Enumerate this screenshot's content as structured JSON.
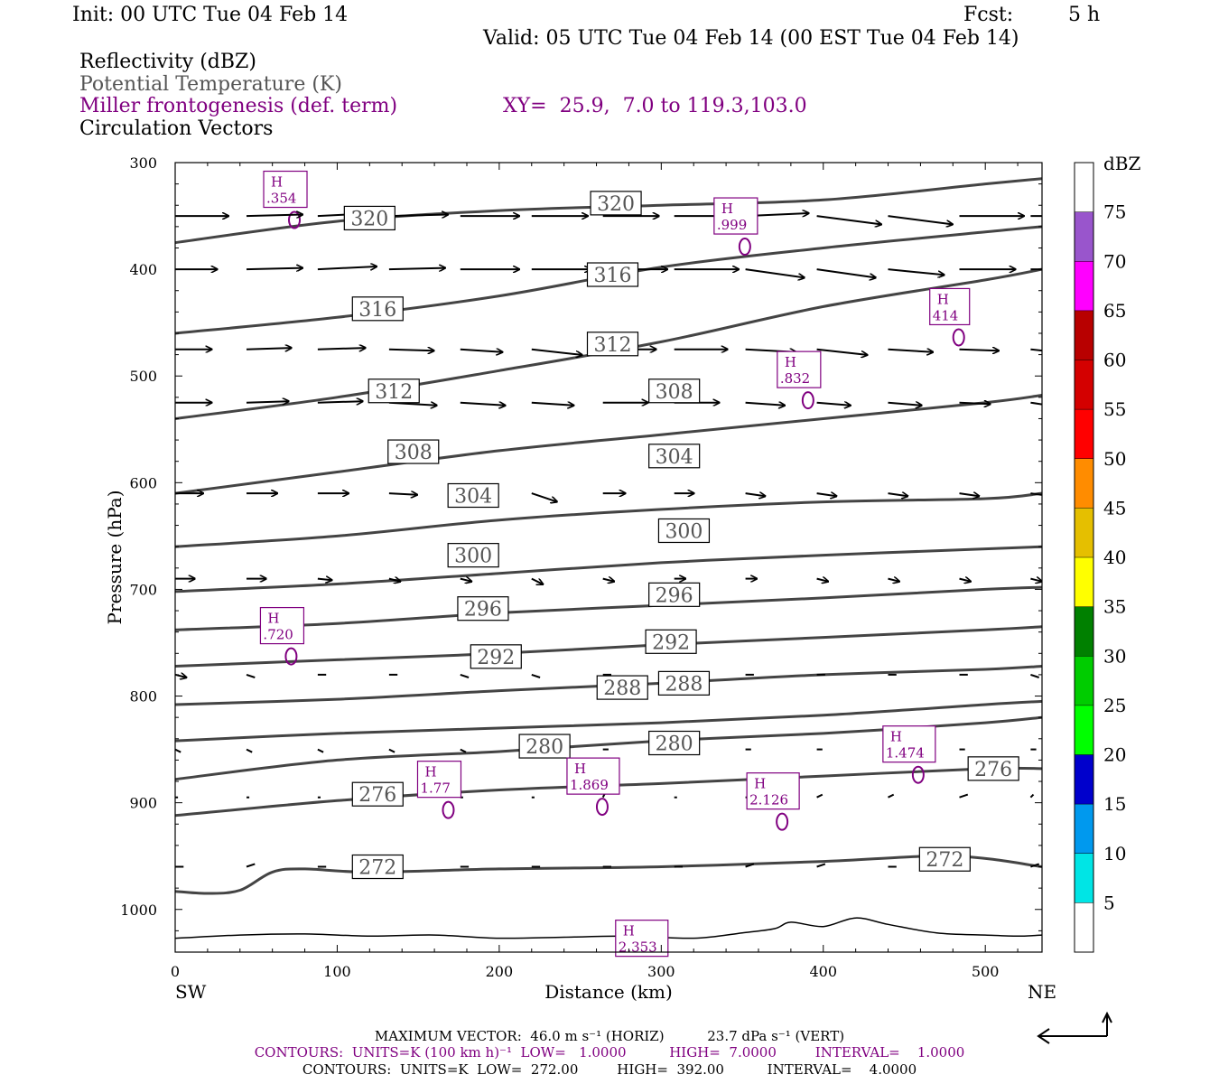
{
  "header": {
    "init": "Init: 00 UTC Tue 04 Feb 14",
    "fcst_label": "Fcst:",
    "fcst_value": "5 h",
    "valid": "Valid: 05 UTC Tue 04 Feb 14 (00 EST Tue 04 Feb 14)"
  },
  "legend": {
    "reflectivity": "Reflectivity (dBZ)",
    "theta": "Potential Temperature (K)",
    "frontogenesis": "Miller frontogenesis (def. term)",
    "xy": "XY=  25.9,  7.0 to 119.3,103.0",
    "circulation": "Circulation Vectors"
  },
  "colors": {
    "frontogenesis": "#800080",
    "theta": "#444444",
    "text": "#000000",
    "theta_label_text": "#555555"
  },
  "axes": {
    "ylabel": "Pressure (hPa)",
    "xlabel": "Distance (km)",
    "x_left": "SW",
    "x_right": "NE",
    "xticks": [
      0,
      100,
      200,
      300,
      400,
      500
    ],
    "yticks": [
      300,
      400,
      500,
      600,
      700,
      800,
      900,
      1000
    ]
  },
  "colorbar": {
    "title": "dBZ",
    "levels": [
      5,
      10,
      15,
      20,
      25,
      30,
      35,
      40,
      45,
      50,
      55,
      60,
      65,
      70,
      75
    ],
    "colors": [
      "#ffffff",
      "#00e5e5",
      "#0099ee",
      "#0000cc",
      "#00ff00",
      "#00cc00",
      "#008000",
      "#ffff00",
      "#e5bf00",
      "#ff8c00",
      "#ff0000",
      "#d40000",
      "#b80000",
      "#ff00ff",
      "#9955cc",
      "#ffffff"
    ]
  },
  "footer": {
    "max_vector": "MAXIMUM VECTOR:  46.0 m s⁻¹ (HORIZ)          23.7 dPa s⁻¹ (VERT)",
    "contours1": "CONTOURS:  UNITS=K (100 km h)⁻¹  LOW=   1.0000          HIGH=  7.0000         INTERVAL=    1.0000",
    "contours2": "CONTOURS:  UNITS=K  LOW=  272.00         HIGH=  392.00          INTERVAL=    4.0000"
  },
  "chart_data": {
    "type": "cross-section",
    "xlim": [
      0,
      535
    ],
    "ylim": [
      300,
      1040
    ],
    "y_scale": "linear, inverted (pressure decreasing upward)",
    "theta_contours": [
      {
        "value": 272,
        "x": [
          0,
          20,
          40,
          60,
          80,
          120,
          200,
          300,
          400,
          480,
          535
        ],
        "p": [
          983,
          985,
          982,
          965,
          962,
          965,
          962,
          960,
          955,
          950,
          960
        ]
      },
      {
        "value": 276,
        "x": [
          0,
          100,
          200,
          300,
          400,
          500,
          535
        ],
        "p": [
          912,
          898,
          888,
          882,
          875,
          868,
          868
        ]
      },
      {
        "value": 280,
        "x": [
          0,
          100,
          200,
          300,
          400,
          500,
          535
        ],
        "p": [
          878,
          860,
          852,
          842,
          835,
          825,
          820
        ]
      },
      {
        "value": 284,
        "x": [
          0,
          100,
          200,
          300,
          400,
          500,
          535
        ],
        "p": [
          842,
          835,
          830,
          825,
          818,
          808,
          805
        ]
      },
      {
        "value": 288,
        "x": [
          0,
          100,
          200,
          300,
          400,
          500,
          535
        ],
        "p": [
          808,
          803,
          795,
          788,
          780,
          775,
          772
        ]
      },
      {
        "value": 292,
        "x": [
          0,
          100,
          200,
          300,
          400,
          500,
          535
        ],
        "p": [
          772,
          766,
          760,
          752,
          745,
          738,
          735
        ]
      },
      {
        "value": 296,
        "x": [
          0,
          100,
          200,
          300,
          400,
          500,
          535
        ],
        "p": [
          738,
          732,
          722,
          715,
          708,
          700,
          698
        ]
      },
      {
        "value": 300,
        "x": [
          0,
          100,
          200,
          300,
          400,
          500,
          535
        ],
        "p": [
          702,
          695,
          685,
          675,
          668,
          662,
          660
        ]
      },
      {
        "value": 304,
        "x": [
          0,
          100,
          200,
          300,
          400,
          500,
          535
        ],
        "p": [
          660,
          650,
          635,
          625,
          618,
          615,
          610
        ]
      },
      {
        "value": 308,
        "x": [
          0,
          100,
          200,
          300,
          400,
          500,
          535
        ],
        "p": [
          610,
          590,
          570,
          555,
          540,
          525,
          518
        ]
      },
      {
        "value": 312,
        "x": [
          0,
          100,
          200,
          300,
          400,
          500,
          535
        ],
        "p": [
          540,
          520,
          495,
          468,
          435,
          410,
          400
        ]
      },
      {
        "value": 316,
        "x": [
          0,
          100,
          200,
          300,
          400,
          500,
          535
        ],
        "p": [
          460,
          445,
          425,
          398,
          380,
          365,
          360
        ]
      },
      {
        "value": 320,
        "x": [
          0,
          100,
          200,
          300,
          400,
          500,
          535
        ],
        "p": [
          375,
          355,
          345,
          340,
          335,
          320,
          315
        ]
      }
    ],
    "theta_labels": [
      {
        "text": "320",
        "x": 120,
        "p": 352
      },
      {
        "text": "320",
        "x": 272,
        "p": 338
      },
      {
        "text": "316",
        "x": 125,
        "p": 437
      },
      {
        "text": "316",
        "x": 270,
        "p": 405
      },
      {
        "text": "312",
        "x": 135,
        "p": 514
      },
      {
        "text": "312",
        "x": 270,
        "p": 470
      },
      {
        "text": "308",
        "x": 147,
        "p": 571
      },
      {
        "text": "308",
        "x": 308,
        "p": 514
      },
      {
        "text": "304",
        "x": 184,
        "p": 612
      },
      {
        "text": "304",
        "x": 308,
        "p": 575
      },
      {
        "text": "300",
        "x": 184,
        "p": 668
      },
      {
        "text": "300",
        "x": 314,
        "p": 645
      },
      {
        "text": "296",
        "x": 190,
        "p": 718
      },
      {
        "text": "296",
        "x": 308,
        "p": 705
      },
      {
        "text": "292",
        "x": 198,
        "p": 763
      },
      {
        "text": "292",
        "x": 306,
        "p": 749
      },
      {
        "text": "288",
        "x": 276,
        "p": 792
      },
      {
        "text": "288",
        "x": 314,
        "p": 788
      },
      {
        "text": "280",
        "x": 228,
        "p": 847
      },
      {
        "text": "280",
        "x": 308,
        "p": 844
      },
      {
        "text": "276",
        "x": 125,
        "p": 892
      },
      {
        "text": "276",
        "x": 505,
        "p": 868
      },
      {
        "text": "272",
        "x": 125,
        "p": 960
      },
      {
        "text": "272",
        "x": 475,
        "p": 953
      }
    ],
    "frontogenesis_maxima": [
      {
        "label": "H",
        "value": ".354",
        "x": 68,
        "p": 325
      },
      {
        "label": "H",
        "value": ".999",
        "x": 346,
        "p": 350
      },
      {
        "label": "H",
        "value": "414",
        "x": 478,
        "p": 435
      },
      {
        "label": "H",
        "value": ".832",
        "x": 385,
        "p": 494
      },
      {
        "label": "H",
        "value": ".720",
        "x": 66,
        "p": 734
      },
      {
        "label": "H",
        "value": "1.474",
        "x": 453,
        "p": 845
      },
      {
        "label": "H",
        "value": "1.77",
        "x": 163,
        "p": 878
      },
      {
        "label": "H",
        "value": "1.869",
        "x": 258,
        "p": 875
      },
      {
        "label": "H",
        "value": "2.126",
        "x": 369,
        "p": 889
      },
      {
        "label": "H",
        "value": "2.353",
        "x": 288,
        "p": 1027
      }
    ],
    "circulation_vectors": [
      {
        "level": 350,
        "x": [
          0,
          44,
          88,
          132,
          176,
          220,
          264,
          308,
          352,
          396,
          440,
          484,
          528
        ],
        "u": [
          38,
          40,
          42,
          42,
          42,
          40,
          40,
          44,
          45,
          46,
          46,
          46,
          45
        ],
        "w": [
          0,
          1,
          2,
          1,
          0,
          0,
          0,
          0,
          2,
          -6,
          -6,
          0,
          0
        ]
      },
      {
        "level": 400,
        "x": [
          0,
          44,
          88,
          132,
          176,
          220,
          264,
          308,
          352,
          396,
          440,
          484,
          528
        ],
        "u": [
          30,
          40,
          42,
          40,
          42,
          42,
          46,
          46,
          42,
          42,
          40,
          40,
          38
        ],
        "w": [
          0,
          1,
          2,
          1,
          0,
          0,
          0,
          0,
          -6,
          -6,
          -4,
          0,
          0
        ]
      },
      {
        "level": 475,
        "x": [
          0,
          44,
          88,
          132,
          176,
          220,
          264,
          308,
          352,
          396,
          440,
          484,
          528
        ],
        "u": [
          26,
          32,
          34,
          32,
          30,
          36,
          38,
          38,
          36,
          36,
          32,
          28,
          26
        ],
        "w": [
          0,
          1,
          1,
          -1,
          -2,
          -4,
          0,
          0,
          -2,
          -4,
          -2,
          -1,
          -3
        ]
      },
      {
        "level": 525,
        "x": [
          0,
          44,
          88,
          132,
          176,
          220,
          264,
          308,
          352,
          396,
          440,
          484,
          528
        ],
        "u": [
          26,
          30,
          32,
          34,
          32,
          30,
          32,
          32,
          28,
          24,
          24,
          22,
          20
        ],
        "w": [
          0,
          1,
          1,
          -2,
          -2,
          -2,
          0,
          0,
          -2,
          -2,
          -2,
          -1,
          -3
        ]
      },
      {
        "level": 610,
        "x": [
          0,
          44,
          88,
          132,
          176,
          220,
          264,
          308,
          352,
          396,
          440,
          484,
          528
        ],
        "u": [
          20,
          22,
          22,
          20,
          18,
          18,
          16,
          14,
          14,
          14,
          14,
          14,
          14
        ],
        "w": [
          0,
          0,
          0,
          -1,
          -1,
          -6,
          0,
          0,
          -2,
          -2,
          -2,
          -2,
          -2
        ]
      },
      {
        "level": 690,
        "x": [
          0,
          44,
          88,
          132,
          176,
          220,
          264,
          308,
          352,
          396,
          440,
          484,
          528
        ],
        "u": [
          14,
          14,
          10,
          8,
          8,
          8,
          8,
          8,
          8,
          8,
          8,
          8,
          8
        ],
        "w": [
          0,
          0,
          -1,
          -2,
          -2,
          -4,
          -2,
          0,
          0,
          -2,
          -2,
          -2,
          -2
        ]
      },
      {
        "level": 780,
        "x": [
          0,
          44,
          88,
          132,
          176,
          220,
          264,
          308,
          352,
          396,
          440,
          484,
          528
        ],
        "u": [
          8,
          6,
          6,
          6,
          6,
          6,
          6,
          6,
          6,
          6,
          6,
          6,
          6
        ],
        "w": [
          -2,
          -2,
          0,
          0,
          -2,
          -2,
          0,
          0,
          0,
          0,
          0,
          0,
          -2
        ]
      },
      {
        "level": 850,
        "x": [
          0,
          44,
          88,
          132,
          176,
          220,
          264,
          308,
          352,
          396,
          440,
          484,
          528
        ],
        "u": [
          4,
          4,
          4,
          4,
          4,
          4,
          4,
          4,
          4,
          4,
          4,
          4,
          4
        ],
        "w": [
          -2,
          -2,
          -2,
          -2,
          -2,
          0,
          0,
          0,
          0,
          0,
          0,
          0,
          0
        ]
      },
      {
        "level": 895,
        "x": [
          0,
          44,
          88,
          132,
          176,
          220,
          264,
          308,
          352,
          396,
          440,
          484,
          528
        ],
        "u": [
          2,
          2,
          2,
          2,
          2,
          2,
          2,
          2,
          2,
          4,
          4,
          6,
          2
        ],
        "w": [
          0,
          0,
          0,
          0,
          0,
          0,
          4,
          0,
          0,
          2,
          2,
          2,
          2
        ]
      },
      {
        "level": 960,
        "x": [
          0,
          44,
          88,
          132,
          176,
          220,
          264,
          308,
          352,
          396,
          440,
          484,
          528
        ],
        "u": [
          6,
          6,
          6,
          6,
          6,
          6,
          6,
          6,
          6,
          6,
          6,
          6,
          6
        ],
        "w": [
          0,
          2,
          0,
          0,
          0,
          0,
          0,
          0,
          2,
          2,
          0,
          2,
          2
        ]
      }
    ],
    "terrain_surface": {
      "x": [
        0,
        40,
        80,
        120,
        160,
        200,
        240,
        280,
        320,
        350,
        370,
        380,
        400,
        420,
        440,
        470,
        500,
        520,
        535
      ],
      "p": [
        1027,
        1024,
        1023,
        1025,
        1024,
        1027,
        1026,
        1025,
        1027,
        1022,
        1018,
        1012,
        1016,
        1008,
        1014,
        1022,
        1024,
        1025,
        1024
      ]
    },
    "legend_placement": "top-left",
    "grid": false
  }
}
